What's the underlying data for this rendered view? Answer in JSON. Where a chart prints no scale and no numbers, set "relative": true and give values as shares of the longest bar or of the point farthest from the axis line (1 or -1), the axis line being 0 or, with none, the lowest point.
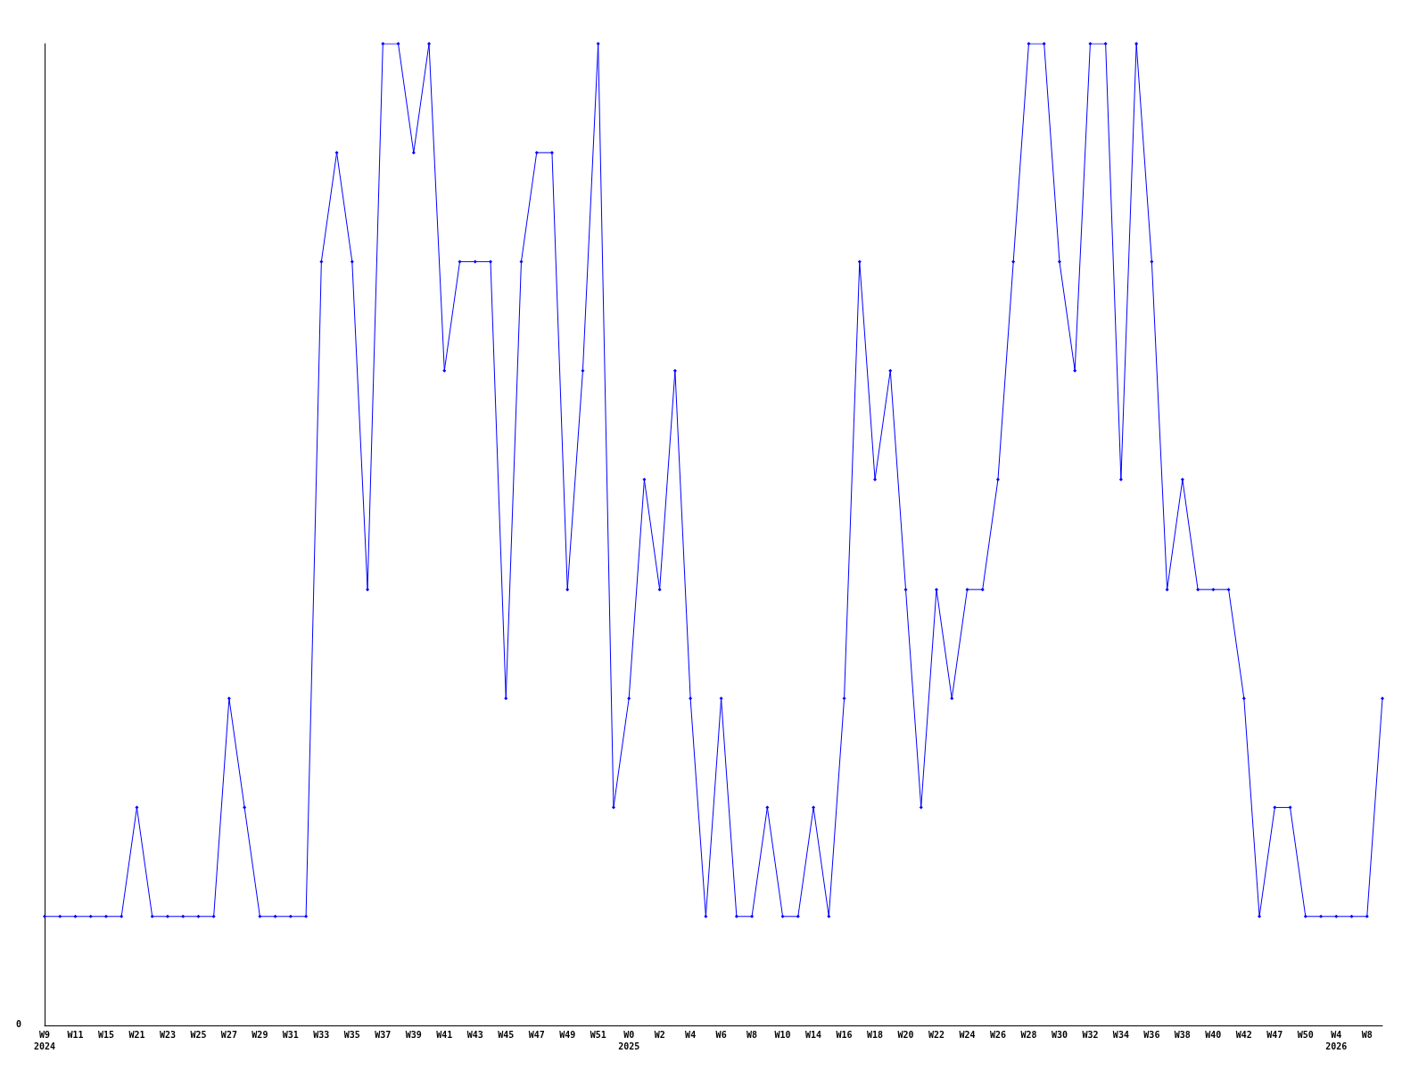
{
  "chart_data": {
    "type": "line",
    "relative": true,
    "marker": "diamond",
    "line_style": "solid",
    "grid": false,
    "categories": [
      "W9\n2024",
      null,
      "W11",
      null,
      "W15",
      null,
      "W21",
      null,
      "W23",
      null,
      "W25",
      null,
      "W27",
      null,
      "W29",
      null,
      "W31",
      null,
      "W33",
      null,
      "W35",
      null,
      "W37",
      null,
      "W39",
      null,
      "W41",
      null,
      "W43",
      null,
      "W45",
      null,
      "W47",
      null,
      "W49",
      null,
      "W51",
      null,
      "W0\n2025",
      null,
      "W2",
      null,
      "W4",
      null,
      "W6",
      null,
      "W8",
      null,
      "W10",
      null,
      "W14",
      null,
      "W16",
      null,
      "W18",
      null,
      "W20",
      null,
      "W22",
      null,
      "W24",
      null,
      "W26",
      null,
      "W28",
      null,
      "W30",
      null,
      "W32",
      null,
      "W34",
      null,
      "W36",
      null,
      "W38",
      null,
      "W40",
      null,
      "W42",
      null,
      "W47",
      null,
      "W50",
      null,
      "W4\n2026",
      null,
      "W8",
      null
    ],
    "series": [
      {
        "color": "#0000ff",
        "values": [
          0.111,
          0.111,
          0.111,
          0.111,
          0.111,
          0.111,
          0.222,
          0.111,
          0.111,
          0.111,
          0.111,
          0.111,
          0.333,
          0.222,
          0.111,
          0.111,
          0.111,
          0.111,
          0.778,
          0.889,
          0.778,
          0.444,
          1,
          1,
          0.889,
          1,
          0.667,
          0.778,
          0.778,
          0.778,
          0.333,
          0.778,
          0.889,
          0.889,
          0.444,
          0.667,
          1,
          0.222,
          0.333,
          0.556,
          0.444,
          0.667,
          0.333,
          0.111,
          0.333,
          0.111,
          0.111,
          0.222,
          0.111,
          0.111,
          0.222,
          0.111,
          0.333,
          0.778,
          0.556,
          0.667,
          0.444,
          0.222,
          0.444,
          0.333,
          0.444,
          0.444,
          0.556,
          0.778,
          1,
          1,
          0.778,
          0.667,
          1,
          1,
          0.556,
          1,
          0.778,
          0.444,
          0.556,
          0.444,
          0.444,
          0.444,
          0.333,
          0.111,
          0.222,
          0.222,
          0.111,
          0.111,
          0.111,
          0.111,
          0.111,
          0.333
        ]
      }
    ],
    "annotations": [
      "0"
    ]
  }
}
